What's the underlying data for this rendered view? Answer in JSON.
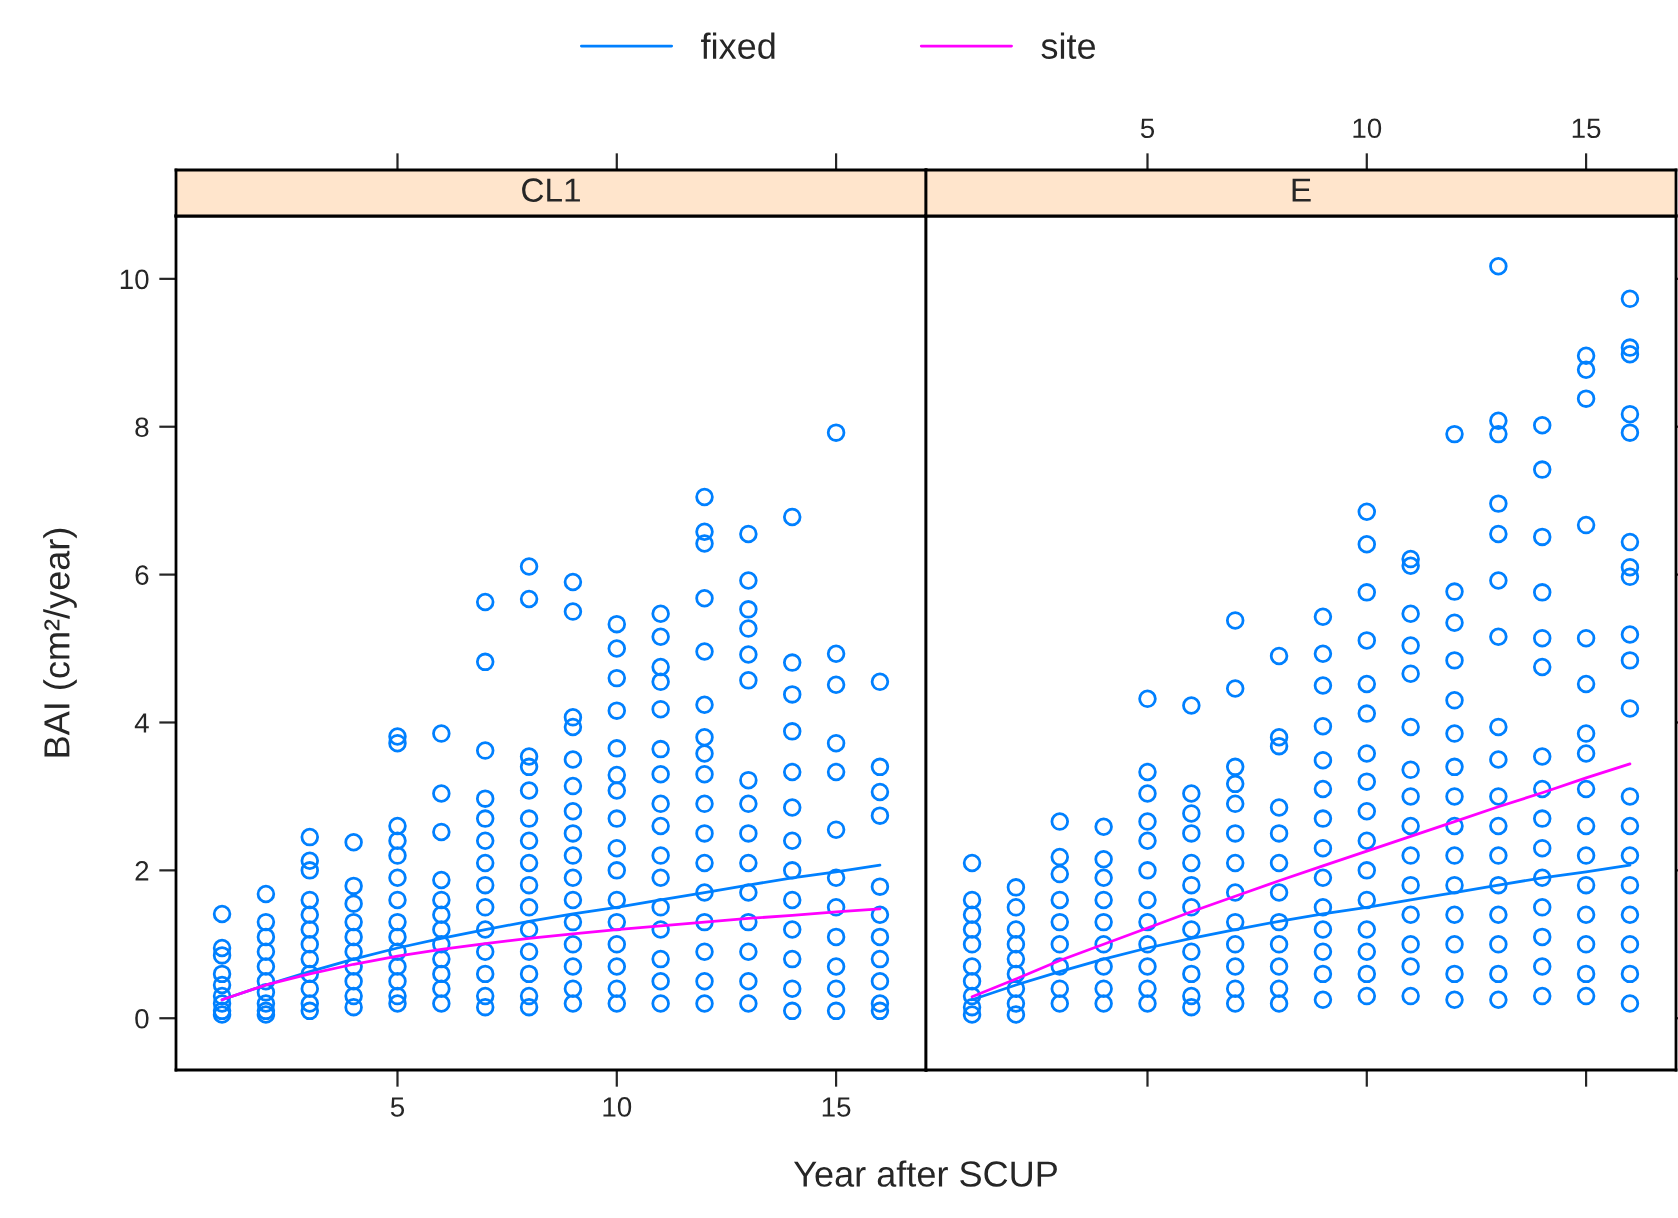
{
  "chart_data": [
    {
      "type": "scatter",
      "title": "CL1",
      "xlabel": "Year after SCUP",
      "ylabel": "BAI (cm²/year)",
      "xlim": [
        -0.05,
        17.05
      ],
      "ylim": [
        -0.7,
        10.85
      ],
      "xticks": [
        5,
        10,
        15
      ],
      "yticks": [
        0,
        2,
        4,
        6,
        8,
        10
      ],
      "legend": "top",
      "series": [
        {
          "marker": "circle",
          "color": "#0080ff",
          "x": [
            1,
            1,
            1,
            1,
            1,
            1,
            1,
            1,
            1,
            2,
            2,
            2,
            2,
            2,
            2,
            2,
            2,
            2,
            2,
            3,
            3,
            3,
            3,
            3,
            3,
            3,
            3,
            3,
            3,
            3,
            3,
            4,
            4,
            4,
            4,
            4,
            4,
            4,
            4,
            4,
            4,
            5,
            5,
            5,
            5,
            5,
            5,
            5,
            5,
            5,
            5,
            5,
            5,
            5,
            5,
            6,
            6,
            6,
            6,
            6,
            6,
            6,
            6,
            6,
            6,
            6,
            6,
            7,
            7,
            7,
            7,
            7,
            7,
            7,
            7,
            7,
            7,
            7,
            7,
            7,
            7,
            8,
            8,
            8,
            8,
            8,
            8,
            8,
            8,
            8,
            8,
            8,
            8,
            8,
            8,
            8,
            9,
            9,
            9,
            9,
            9,
            9,
            9,
            9,
            9,
            9,
            9,
            9,
            9,
            9,
            9,
            9,
            10,
            10,
            10,
            10,
            10,
            10,
            10,
            10,
            10,
            10,
            10,
            10,
            10,
            10,
            10,
            10,
            11,
            11,
            11,
            11,
            11,
            11,
            11,
            11,
            11,
            11,
            11,
            11,
            11,
            11,
            11,
            11,
            12,
            12,
            12,
            12,
            12,
            12,
            12,
            12,
            12,
            12,
            12,
            12,
            12,
            12,
            12,
            12,
            12,
            13,
            13,
            13,
            13,
            13,
            13,
            13,
            13,
            13,
            13,
            13,
            13,
            13,
            13,
            13,
            14,
            14,
            14,
            14,
            14,
            14,
            14,
            14,
            14,
            14,
            14,
            14,
            14,
            15,
            15,
            15,
            15,
            15,
            15,
            15,
            15,
            15,
            15,
            15,
            15,
            16,
            16,
            16,
            16,
            16,
            16,
            16,
            16,
            16,
            16,
            16
          ],
          "values": [
            1.41,
            0.95,
            0.85,
            0.6,
            0.45,
            0.3,
            0.2,
            0.1,
            0.05,
            1.68,
            1.3,
            1.1,
            0.9,
            0.7,
            0.5,
            0.35,
            0.2,
            0.1,
            0.05,
            2.45,
            2.13,
            2.0,
            1.6,
            1.4,
            1.2,
            1.0,
            0.8,
            0.6,
            0.4,
            0.2,
            0.1,
            2.38,
            1.79,
            1.55,
            1.3,
            1.1,
            0.9,
            0.7,
            0.5,
            0.3,
            0.15,
            3.81,
            3.72,
            2.6,
            2.4,
            2.2,
            1.9,
            1.6,
            1.3,
            1.1,
            0.9,
            0.7,
            0.5,
            0.3,
            0.2,
            3.85,
            3.04,
            2.52,
            1.87,
            1.6,
            1.4,
            1.2,
            1.0,
            0.8,
            0.6,
            0.4,
            0.2,
            5.63,
            4.82,
            3.62,
            2.97,
            2.7,
            2.4,
            2.1,
            1.8,
            1.5,
            1.2,
            0.9,
            0.6,
            0.3,
            0.15,
            6.11,
            5.67,
            3.54,
            3.4,
            3.08,
            2.7,
            2.4,
            2.1,
            1.8,
            1.5,
            1.2,
            0.9,
            0.6,
            0.3,
            0.15,
            5.9,
            5.5,
            4.07,
            3.94,
            3.5,
            3.14,
            2.8,
            2.5,
            2.2,
            1.9,
            1.6,
            1.3,
            1.0,
            0.7,
            0.4,
            0.2,
            5.33,
            5.0,
            4.6,
            4.16,
            3.65,
            3.29,
            3.08,
            2.7,
            2.3,
            2.0,
            1.6,
            1.3,
            1.0,
            0.7,
            0.4,
            0.2,
            5.47,
            5.16,
            4.75,
            4.55,
            4.18,
            3.64,
            3.3,
            2.9,
            2.6,
            2.2,
            1.9,
            1.5,
            1.2,
            0.8,
            0.5,
            0.2,
            7.05,
            6.58,
            6.42,
            5.68,
            4.96,
            4.24,
            3.8,
            3.58,
            3.3,
            2.9,
            2.5,
            2.1,
            1.7,
            1.3,
            0.9,
            0.5,
            0.2,
            6.55,
            5.92,
            5.53,
            5.27,
            4.92,
            4.57,
            3.22,
            2.9,
            2.5,
            2.1,
            1.7,
            1.3,
            0.9,
            0.5,
            0.2,
            6.78,
            4.81,
            4.38,
            3.88,
            3.33,
            2.85,
            2.4,
            2.0,
            1.6,
            1.2,
            0.8,
            0.4,
            0.1,
            7.92,
            4.93,
            4.51,
            3.72,
            3.33,
            2.55,
            1.9,
            1.5,
            1.1,
            0.7,
            0.4,
            0.1,
            4.55,
            3.4,
            3.06,
            2.74,
            1.78,
            1.4,
            1.1,
            0.8,
            0.5,
            0.2,
            0.1
          ]
        },
        {
          "type": "line",
          "name": "fixed",
          "marker": "none",
          "color": "#0080ff",
          "x": [
            1,
            2,
            3,
            4,
            5,
            6,
            7,
            8,
            9,
            10,
            11,
            12,
            13,
            14,
            15,
            16
          ],
          "values": [
            0.25,
            0.45,
            0.63,
            0.8,
            0.95,
            1.08,
            1.2,
            1.31,
            1.41,
            1.5,
            1.6,
            1.7,
            1.8,
            1.9,
            1.98,
            2.07
          ]
        },
        {
          "type": "line",
          "name": "site",
          "marker": "none",
          "color": "#ff00ff",
          "x": [
            1,
            2,
            3,
            4,
            5,
            6,
            7,
            8,
            9,
            10,
            11,
            12,
            13,
            14,
            15,
            16
          ],
          "values": [
            0.25,
            0.45,
            0.6,
            0.73,
            0.84,
            0.93,
            1.01,
            1.08,
            1.14,
            1.2,
            1.25,
            1.3,
            1.35,
            1.39,
            1.44,
            1.48
          ]
        }
      ]
    },
    {
      "type": "scatter",
      "title": "E",
      "xlim": [
        -0.05,
        17.05
      ],
      "ylim": [
        -0.7,
        10.85
      ],
      "xticks": [
        5,
        10,
        15
      ],
      "yticks": [
        0,
        2,
        4,
        6,
        8,
        10
      ],
      "tick_labels": "x",
      "series": [
        {
          "marker": "circle",
          "color": "#0080ff",
          "x": [
            1,
            1,
            1,
            1,
            1,
            1,
            1,
            1,
            1,
            1,
            2,
            2,
            2,
            2,
            2,
            2,
            2,
            2,
            2,
            3,
            3,
            3,
            3,
            3,
            3,
            3,
            3,
            3,
            4,
            4,
            4,
            4,
            4,
            4,
            4,
            4,
            4,
            5,
            5,
            5,
            5,
            5,
            5,
            5,
            5,
            5,
            5,
            5,
            5,
            6,
            6,
            6,
            6,
            6,
            6,
            6,
            6,
            6,
            6,
            6,
            6,
            7,
            7,
            7,
            7,
            7,
            7,
            7,
            7,
            7,
            7,
            7,
            7,
            7,
            8,
            8,
            8,
            8,
            8,
            8,
            8,
            8,
            8,
            8,
            8,
            8,
            9,
            9,
            9,
            9,
            9,
            9,
            9,
            9,
            9,
            9,
            9,
            9,
            9,
            9,
            10,
            10,
            10,
            10,
            10,
            10,
            10,
            10,
            10,
            10,
            10,
            10,
            10,
            10,
            10,
            10,
            11,
            11,
            11,
            11,
            11,
            11,
            11,
            11,
            11,
            11,
            11,
            11,
            11,
            11,
            11,
            12,
            12,
            12,
            12,
            12,
            12,
            12,
            12,
            12,
            12,
            12,
            12,
            12,
            12,
            12,
            13,
            13,
            13,
            13,
            13,
            13,
            13,
            13,
            13,
            13,
            13,
            13,
            13,
            13,
            13,
            13,
            13,
            14,
            14,
            14,
            14,
            14,
            14,
            14,
            14,
            14,
            14,
            14,
            14,
            14,
            14,
            14,
            15,
            15,
            15,
            15,
            15,
            15,
            15,
            15,
            15,
            15,
            15,
            15,
            15,
            15,
            15,
            15,
            16,
            16,
            16,
            16,
            16,
            16,
            16,
            16,
            16,
            16,
            16,
            16,
            16,
            16,
            16,
            16,
            16,
            16,
            16
          ],
          "values": [
            2.1,
            1.6,
            1.4,
            1.2,
            1.0,
            0.7,
            0.5,
            0.3,
            0.15,
            0.05,
            1.77,
            1.5,
            1.2,
            1.0,
            0.8,
            0.6,
            0.4,
            0.2,
            0.05,
            2.66,
            2.18,
            1.95,
            1.6,
            1.3,
            1.0,
            0.7,
            0.4,
            0.2,
            2.59,
            2.15,
            1.9,
            1.6,
            1.3,
            1.0,
            0.7,
            0.4,
            0.2,
            4.32,
            3.33,
            3.04,
            2.66,
            2.4,
            2.0,
            1.6,
            1.3,
            1.0,
            0.7,
            0.4,
            0.2,
            4.23,
            3.04,
            2.77,
            2.5,
            2.1,
            1.8,
            1.5,
            1.2,
            0.9,
            0.6,
            0.3,
            0.15,
            5.38,
            4.46,
            3.4,
            3.17,
            2.9,
            2.5,
            2.1,
            1.7,
            1.3,
            1.0,
            0.7,
            0.4,
            0.2,
            4.9,
            3.8,
            3.68,
            2.85,
            2.5,
            2.1,
            1.7,
            1.3,
            1.0,
            0.7,
            0.4,
            0.2,
            5.43,
            4.93,
            4.5,
            3.95,
            3.49,
            3.1,
            2.7,
            2.3,
            1.9,
            1.5,
            1.2,
            0.9,
            0.6,
            0.25,
            6.85,
            6.41,
            5.76,
            5.11,
            4.52,
            4.12,
            3.58,
            3.2,
            2.8,
            2.4,
            2.0,
            1.6,
            1.2,
            0.9,
            0.6,
            0.3,
            6.21,
            6.12,
            5.47,
            5.04,
            4.66,
            3.94,
            3.36,
            3.0,
            2.6,
            2.2,
            1.8,
            1.4,
            1.0,
            0.7,
            0.3,
            7.9,
            5.77,
            5.35,
            4.84,
            4.3,
            3.85,
            3.4,
            3.0,
            2.6,
            2.2,
            1.8,
            1.4,
            1.0,
            0.6,
            0.25,
            10.17,
            8.08,
            7.9,
            6.96,
            6.55,
            5.92,
            5.16,
            3.94,
            3.5,
            3.0,
            2.6,
            2.2,
            1.8,
            1.4,
            1.0,
            0.6,
            0.25,
            8.02,
            7.42,
            6.51,
            5.76,
            5.14,
            4.75,
            3.54,
            3.1,
            2.7,
            2.3,
            1.9,
            1.5,
            1.1,
            0.7,
            0.3,
            8.96,
            8.77,
            8.38,
            6.67,
            5.14,
            4.52,
            3.85,
            3.58,
            3.1,
            2.6,
            2.2,
            1.8,
            1.4,
            1.0,
            0.6,
            0.3,
            9.73,
            9.07,
            8.98,
            8.17,
            7.92,
            6.44,
            6.1,
            5.97,
            5.19,
            4.84,
            4.19,
            3.0,
            2.6,
            2.2,
            1.8,
            1.4,
            1.0,
            0.6,
            0.2
          ]
        },
        {
          "type": "line",
          "marker": "none",
          "color": "#0080ff",
          "x": [
            1,
            2,
            3,
            4,
            5,
            6,
            7,
            8,
            9,
            10,
            11,
            12,
            13,
            14,
            15,
            16
          ],
          "values": [
            0.25,
            0.45,
            0.63,
            0.8,
            0.95,
            1.08,
            1.2,
            1.31,
            1.41,
            1.5,
            1.6,
            1.7,
            1.8,
            1.9,
            1.98,
            2.07
          ]
        },
        {
          "type": "line",
          "marker": "none",
          "color": "#ff00ff",
          "x": [
            1,
            2,
            3,
            4,
            5,
            6,
            7,
            8,
            9,
            10,
            11,
            12,
            13,
            14,
            15,
            16
          ],
          "values": [
            0.29,
            0.53,
            0.78,
            1.0,
            1.22,
            1.44,
            1.65,
            1.86,
            2.06,
            2.26,
            2.46,
            2.66,
            2.86,
            3.05,
            3.25,
            3.44
          ]
        }
      ]
    }
  ]
}
